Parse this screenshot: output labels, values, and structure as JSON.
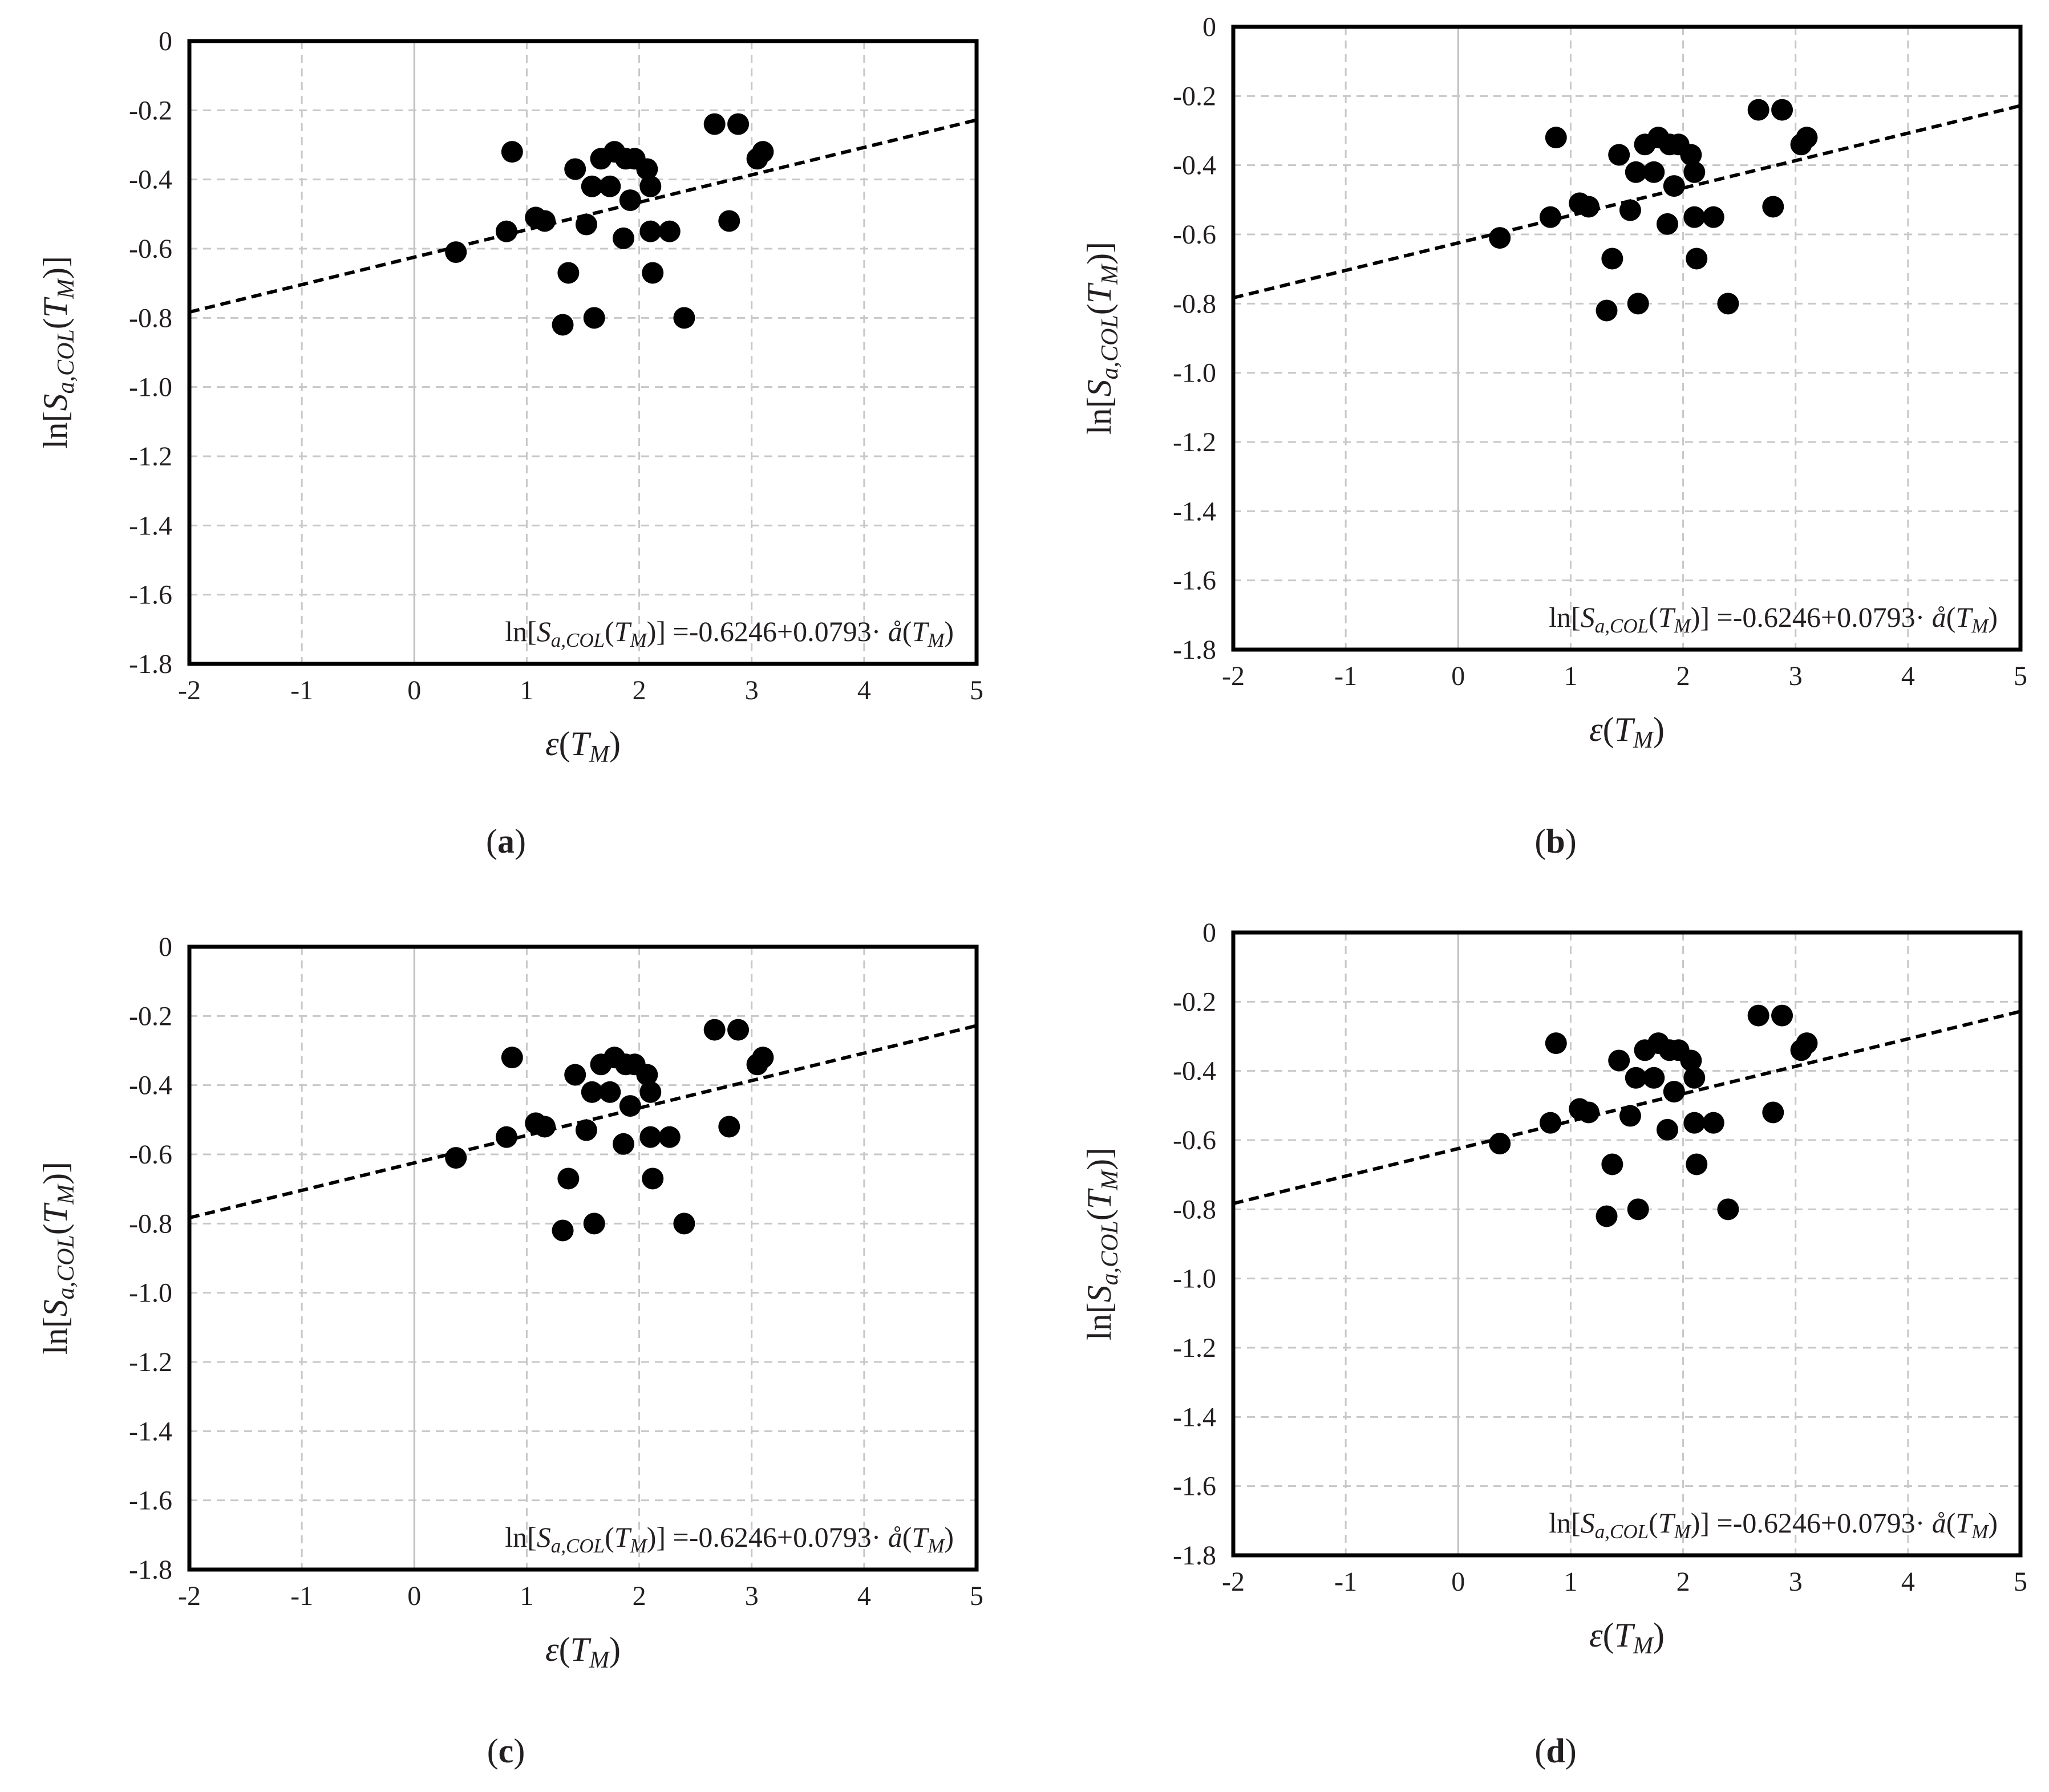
{
  "chart_data": [
    {
      "type": "scatter",
      "panel_label": "a",
      "xlabel": "ε(TM)",
      "ylabel": "ln[Sa,COL(TM)]",
      "xlim": [
        -2,
        5
      ],
      "ylim": [
        -1.8,
        0
      ],
      "xticks": [
        "-2",
        "-1",
        "0",
        "1",
        "2",
        "3",
        "4",
        "5"
      ],
      "yticks": [
        "0",
        "-0.2",
        "-0.4",
        "-0.6",
        "-0.8",
        "-1.0",
        "-1.2",
        "-1.4",
        "-1.6",
        "-1.8"
      ],
      "equation": "ln[Sa,COL(TM)] =-0.6246+0.0793· å(TM)",
      "trendline": {
        "intercept": -0.6246,
        "slope": 0.0793
      },
      "points": [
        [
          0.37,
          -0.61
        ],
        [
          0.82,
          -0.55
        ],
        [
          0.87,
          -0.32
        ],
        [
          1.08,
          -0.51
        ],
        [
          1.16,
          -0.52
        ],
        [
          1.37,
          -0.67
        ],
        [
          1.43,
          -0.37
        ],
        [
          1.53,
          -0.53
        ],
        [
          1.58,
          -0.42
        ],
        [
          1.6,
          -0.8
        ],
        [
          1.66,
          -0.34
        ],
        [
          1.74,
          -0.42
        ],
        [
          1.78,
          -0.32
        ],
        [
          1.86,
          -0.57
        ],
        [
          1.88,
          -0.34
        ],
        [
          1.92,
          -0.46
        ],
        [
          1.96,
          -0.34
        ],
        [
          2.07,
          -0.37
        ],
        [
          2.1,
          -0.42
        ],
        [
          2.1,
          -0.55
        ],
        [
          2.12,
          -0.67
        ],
        [
          2.27,
          -0.55
        ],
        [
          2.4,
          -0.8
        ],
        [
          2.67,
          -0.24
        ],
        [
          2.8,
          -0.52
        ],
        [
          2.88,
          -0.24
        ],
        [
          3.05,
          -0.34
        ],
        [
          3.1,
          -0.32
        ],
        [
          1.32,
          -0.82
        ]
      ]
    },
    {
      "type": "scatter",
      "panel_label": "b",
      "xlabel": "ε(TM)",
      "ylabel": "ln[Sa,COL(TM)]",
      "xlim": [
        -2,
        5
      ],
      "ylim": [
        -1.8,
        0
      ],
      "xticks": [
        "-2",
        "-1",
        "0",
        "1",
        "2",
        "3",
        "4",
        "5"
      ],
      "yticks": [
        "0",
        "-0.2",
        "-0.4",
        "-0.6",
        "-0.8",
        "-1.0",
        "-1.2",
        "-1.4",
        "-1.6",
        "-1.8"
      ],
      "equation": "ln[Sa,COL(TM)] =-0.6246+0.0793· å(TM)",
      "trendline": {
        "intercept": -0.6246,
        "slope": 0.0793
      },
      "points": [
        [
          0.37,
          -0.61
        ],
        [
          0.82,
          -0.55
        ],
        [
          0.87,
          -0.32
        ],
        [
          1.08,
          -0.51
        ],
        [
          1.16,
          -0.52
        ],
        [
          1.37,
          -0.67
        ],
        [
          1.43,
          -0.37
        ],
        [
          1.53,
          -0.53
        ],
        [
          1.58,
          -0.42
        ],
        [
          1.6,
          -0.8
        ],
        [
          1.66,
          -0.34
        ],
        [
          1.74,
          -0.42
        ],
        [
          1.78,
          -0.32
        ],
        [
          1.86,
          -0.57
        ],
        [
          1.88,
          -0.34
        ],
        [
          1.92,
          -0.46
        ],
        [
          1.96,
          -0.34
        ],
        [
          2.07,
          -0.37
        ],
        [
          2.1,
          -0.42
        ],
        [
          2.1,
          -0.55
        ],
        [
          2.12,
          -0.67
        ],
        [
          2.27,
          -0.55
        ],
        [
          2.4,
          -0.8
        ],
        [
          2.67,
          -0.24
        ],
        [
          2.8,
          -0.52
        ],
        [
          2.88,
          -0.24
        ],
        [
          3.05,
          -0.34
        ],
        [
          3.1,
          -0.32
        ],
        [
          1.32,
          -0.82
        ]
      ]
    },
    {
      "type": "scatter",
      "panel_label": "c",
      "xlabel": "ε(TM)",
      "ylabel": "ln[Sa,COL(TM)]",
      "xlim": [
        -2,
        5
      ],
      "ylim": [
        -1.8,
        0
      ],
      "xticks": [
        "-2",
        "-1",
        "0",
        "1",
        "2",
        "3",
        "4",
        "5"
      ],
      "yticks": [
        "0",
        "-0.2",
        "-0.4",
        "-0.6",
        "-0.8",
        "-1.0",
        "-1.2",
        "-1.4",
        "-1.6",
        "-1.8"
      ],
      "equation": "ln[Sa,COL(TM)] =-0.6246+0.0793· å(TM)",
      "trendline": {
        "intercept": -0.6246,
        "slope": 0.0793
      },
      "points": [
        [
          0.37,
          -0.61
        ],
        [
          0.82,
          -0.55
        ],
        [
          0.87,
          -0.32
        ],
        [
          1.08,
          -0.51
        ],
        [
          1.16,
          -0.52
        ],
        [
          1.37,
          -0.67
        ],
        [
          1.43,
          -0.37
        ],
        [
          1.53,
          -0.53
        ],
        [
          1.58,
          -0.42
        ],
        [
          1.6,
          -0.8
        ],
        [
          1.66,
          -0.34
        ],
        [
          1.74,
          -0.42
        ],
        [
          1.78,
          -0.32
        ],
        [
          1.86,
          -0.57
        ],
        [
          1.88,
          -0.34
        ],
        [
          1.92,
          -0.46
        ],
        [
          1.96,
          -0.34
        ],
        [
          2.07,
          -0.37
        ],
        [
          2.1,
          -0.42
        ],
        [
          2.1,
          -0.55
        ],
        [
          2.12,
          -0.67
        ],
        [
          2.27,
          -0.55
        ],
        [
          2.4,
          -0.8
        ],
        [
          2.67,
          -0.24
        ],
        [
          2.8,
          -0.52
        ],
        [
          2.88,
          -0.24
        ],
        [
          3.05,
          -0.34
        ],
        [
          3.1,
          -0.32
        ],
        [
          1.32,
          -0.82
        ]
      ]
    },
    {
      "type": "scatter",
      "panel_label": "d",
      "xlabel": "ε(TM)",
      "ylabel": "ln[Sa,COL(TM)]",
      "xlim": [
        -2,
        5
      ],
      "ylim": [
        -1.8,
        0
      ],
      "xticks": [
        "-2",
        "-1",
        "0",
        "1",
        "2",
        "3",
        "4",
        "5"
      ],
      "yticks": [
        "0",
        "-0.2",
        "-0.4",
        "-0.6",
        "-0.8",
        "-1.0",
        "-1.2",
        "-1.4",
        "-1.6",
        "-1.8"
      ],
      "equation": "ln[Sa,COL(TM)] =-0.6246+0.0793· å(TM)",
      "trendline": {
        "intercept": -0.6246,
        "slope": 0.0793
      },
      "points": [
        [
          0.37,
          -0.61
        ],
        [
          0.82,
          -0.55
        ],
        [
          0.87,
          -0.32
        ],
        [
          1.08,
          -0.51
        ],
        [
          1.16,
          -0.52
        ],
        [
          1.37,
          -0.67
        ],
        [
          1.43,
          -0.37
        ],
        [
          1.53,
          -0.53
        ],
        [
          1.58,
          -0.42
        ],
        [
          1.6,
          -0.8
        ],
        [
          1.66,
          -0.34
        ],
        [
          1.74,
          -0.42
        ],
        [
          1.78,
          -0.32
        ],
        [
          1.86,
          -0.57
        ],
        [
          1.88,
          -0.34
        ],
        [
          1.92,
          -0.46
        ],
        [
          1.96,
          -0.34
        ],
        [
          2.07,
          -0.37
        ],
        [
          2.1,
          -0.42
        ],
        [
          2.1,
          -0.55
        ],
        [
          2.12,
          -0.67
        ],
        [
          2.27,
          -0.55
        ],
        [
          2.4,
          -0.8
        ],
        [
          2.67,
          -0.24
        ],
        [
          2.8,
          -0.52
        ],
        [
          2.88,
          -0.24
        ],
        [
          3.05,
          -0.34
        ],
        [
          3.1,
          -0.32
        ],
        [
          1.32,
          -0.82
        ]
      ]
    }
  ],
  "colors": {
    "axis": "#000000",
    "grid": "#c8c8c8",
    "zero_line": "#bfbfbf",
    "marker": "#000000",
    "trendline": "#000000",
    "text": "#231f20"
  }
}
